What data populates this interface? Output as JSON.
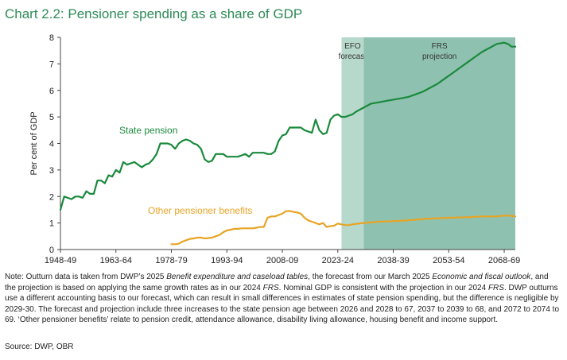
{
  "title": "Chart 2.2: Pensioner spending as a share of GDP",
  "chart_data": {
    "type": "line",
    "title": "Pensioner spending as a share of GDP",
    "ylabel": "Per cent of GDP",
    "xlabel": "",
    "ylim": [
      0,
      8
    ],
    "yticks": [
      "0",
      "1",
      "2",
      "3",
      "4",
      "5",
      "6",
      "7",
      "8"
    ],
    "x_range": [
      1948,
      2071
    ],
    "x_tick_labels": [
      {
        "label": "1948-49",
        "year": 1948
      },
      {
        "label": "1963-64",
        "year": 1963
      },
      {
        "label": "1978-79",
        "year": 1978
      },
      {
        "label": "1993-94",
        "year": 1993
      },
      {
        "label": "2008-09",
        "year": 2008
      },
      {
        "label": "2023-24",
        "year": 2023
      },
      {
        "label": "2038-39",
        "year": 2038
      },
      {
        "label": "2053-54",
        "year": 2053
      },
      {
        "label": "2068-69",
        "year": 2068
      }
    ],
    "bands": [
      {
        "label_line1": "EFO",
        "label_line2": "forecast",
        "start": 2024,
        "end": 2030,
        "color": "#b7d9cc"
      },
      {
        "label_line1": "FRS",
        "label_line2": "projection",
        "start": 2030,
        "end": 2071,
        "color": "#8fc1b0"
      }
    ],
    "series": [
      {
        "name": "State pension",
        "color": "#1a8a3c",
        "x": [
          1948,
          1949,
          1950,
          1951,
          1952,
          1953,
          1954,
          1955,
          1956,
          1957,
          1958,
          1959,
          1960,
          1961,
          1962,
          1963,
          1964,
          1965,
          1966,
          1967,
          1968,
          1969,
          1970,
          1971,
          1972,
          1973,
          1974,
          1975,
          1976,
          1977,
          1978,
          1979,
          1980,
          1981,
          1982,
          1983,
          1984,
          1985,
          1986,
          1987,
          1988,
          1989,
          1990,
          1991,
          1992,
          1993,
          1994,
          1995,
          1996,
          1997,
          1998,
          1999,
          2000,
          2001,
          2002,
          2003,
          2004,
          2005,
          2006,
          2007,
          2008,
          2009,
          2010,
          2011,
          2012,
          2013,
          2014,
          2015,
          2016,
          2017,
          2018,
          2019,
          2020,
          2021,
          2022,
          2023,
          2024,
          2025,
          2026,
          2027,
          2028,
          2030,
          2032,
          2034,
          2036,
          2038,
          2040,
          2042,
          2044,
          2046,
          2048,
          2050,
          2052,
          2054,
          2056,
          2058,
          2060,
          2062,
          2064,
          2066,
          2068,
          2069,
          2070,
          2071
        ],
        "values": [
          1.5,
          2.0,
          1.95,
          1.9,
          2.0,
          2.0,
          1.95,
          2.2,
          2.1,
          2.1,
          2.6,
          2.6,
          2.5,
          2.8,
          2.75,
          3.0,
          2.9,
          3.3,
          3.2,
          3.25,
          3.3,
          3.2,
          3.1,
          3.2,
          3.25,
          3.4,
          3.6,
          4.0,
          4.0,
          4.0,
          3.95,
          3.8,
          4.0,
          4.1,
          4.15,
          4.1,
          4.0,
          3.95,
          3.8,
          3.4,
          3.3,
          3.35,
          3.6,
          3.6,
          3.6,
          3.5,
          3.5,
          3.5,
          3.5,
          3.55,
          3.6,
          3.5,
          3.65,
          3.65,
          3.65,
          3.65,
          3.6,
          3.6,
          3.7,
          4.1,
          4.3,
          4.35,
          4.6,
          4.6,
          4.6,
          4.6,
          4.5,
          4.45,
          4.4,
          4.9,
          4.5,
          4.35,
          4.4,
          4.9,
          5.05,
          5.1,
          5.0,
          5.0,
          5.05,
          5.1,
          5.2,
          5.35,
          5.5,
          5.55,
          5.6,
          5.65,
          5.7,
          5.75,
          5.85,
          5.95,
          6.1,
          6.25,
          6.45,
          6.65,
          6.85,
          7.05,
          7.25,
          7.45,
          7.6,
          7.75,
          7.8,
          7.75,
          7.65,
          7.65
        ]
      },
      {
        "name": "Other pensioner benefits",
        "color": "#e8a424",
        "x": [
          1978,
          1979,
          1980,
          1981,
          1982,
          1983,
          1984,
          1985,
          1986,
          1987,
          1988,
          1989,
          1990,
          1991,
          1992,
          1993,
          1994,
          1995,
          1996,
          1997,
          1998,
          1999,
          2000,
          2001,
          2002,
          2003,
          2004,
          2005,
          2006,
          2007,
          2008,
          2009,
          2010,
          2011,
          2012,
          2013,
          2014,
          2015,
          2016,
          2017,
          2018,
          2019,
          2020,
          2021,
          2022,
          2023,
          2024,
          2025,
          2026,
          2027,
          2028,
          2030,
          2034,
          2038,
          2042,
          2046,
          2050,
          2054,
          2058,
          2062,
          2066,
          2068,
          2069,
          2070,
          2071
        ],
        "values": [
          0.2,
          0.2,
          0.22,
          0.3,
          0.35,
          0.4,
          0.42,
          0.45,
          0.45,
          0.42,
          0.43,
          0.45,
          0.5,
          0.55,
          0.65,
          0.72,
          0.75,
          0.78,
          0.78,
          0.8,
          0.8,
          0.8,
          0.8,
          0.82,
          0.85,
          0.85,
          1.2,
          1.25,
          1.25,
          1.3,
          1.35,
          1.45,
          1.45,
          1.42,
          1.4,
          1.35,
          1.2,
          1.1,
          1.05,
          1.0,
          0.95,
          1.0,
          0.85,
          0.88,
          0.9,
          0.98,
          0.95,
          0.92,
          0.92,
          0.95,
          0.97,
          1.0,
          1.05,
          1.07,
          1.1,
          1.15,
          1.18,
          1.2,
          1.22,
          1.25,
          1.25,
          1.28,
          1.28,
          1.27,
          1.25
        ]
      }
    ],
    "annotations": [
      {
        "text": "State pension",
        "series": "State pension"
      },
      {
        "text": "Other pensioner benefits",
        "series": "Other pensioner benefits"
      }
    ],
    "grid": false,
    "legend": "none"
  },
  "note": {
    "p1": "Note: Outturn data is taken from DWP’s 2025 ",
    "i1": "Benefit expenditure and caseload tables",
    "p2": ", the forecast from our March 2025 ",
    "i2": "Economic and fiscal outlook",
    "p3": ", and the projection is based on applying the same growth rates as in our 2024 ",
    "i3": "FRS",
    "p4": ". Nominal GDP is consistent with the projection in our 2024 ",
    "i4": "FRS",
    "p5": ". DWP outturns use a different accounting basis to our forecast, which can result in small differences in estimates of state pension spending, but the difference is negligible by 2029-30. The forecast and projection include three increases to the state pension age between 2026 and 2028 to 67, 2037 to 2039 to 68, and 2072 to 2074 to 69. ‘Other pensioner benefits’ relate to pension credit, attendance allowance, disability living allowance, housing benefit and income support."
  },
  "source": "Source: DWP, OBR"
}
